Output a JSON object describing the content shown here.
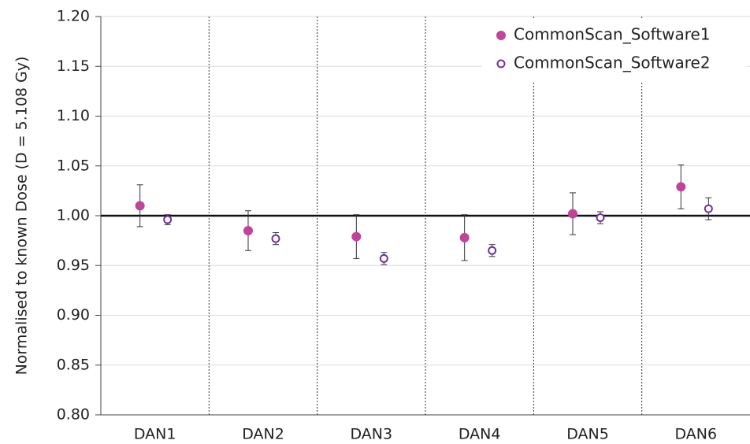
{
  "chart_data": {
    "type": "scatter",
    "y_label": "Normalised to known Dose (D = 5.108 Gy)",
    "categories": [
      "DAN1",
      "DAN2",
      "DAN3",
      "DAN4",
      "DAN5",
      "DAN6"
    ],
    "series": [
      {
        "name": "CommonScan_Software1",
        "color": "#c2439a",
        "marker": "filled",
        "values": [
          1.01,
          0.985,
          0.979,
          0.978,
          1.002,
          1.029
        ],
        "errors": [
          0.021,
          0.02,
          0.022,
          0.023,
          0.021,
          0.022
        ]
      },
      {
        "name": "CommonScan_Software2",
        "color": "#7030a0",
        "marker": "open",
        "values": [
          0.996,
          0.977,
          0.957,
          0.965,
          0.998,
          1.007
        ],
        "errors": [
          0.005,
          0.006,
          0.006,
          0.006,
          0.006,
          0.011
        ]
      }
    ],
    "ylim": [
      0.8,
      1.2
    ],
    "yticks": [
      {
        "value": 0.8,
        "label": "0.80"
      },
      0.85,
      {
        "value": 0.9,
        "label": "0.90"
      },
      0.95,
      {
        "value": 1.0,
        "label": "1.00"
      },
      1.05,
      {
        "value": 1.1,
        "label": "1.10"
      },
      1.15,
      {
        "value": 1.2,
        "label": "1.20"
      }
    ],
    "reference_line": 1.0,
    "grid": true,
    "legend": "top-right"
  }
}
